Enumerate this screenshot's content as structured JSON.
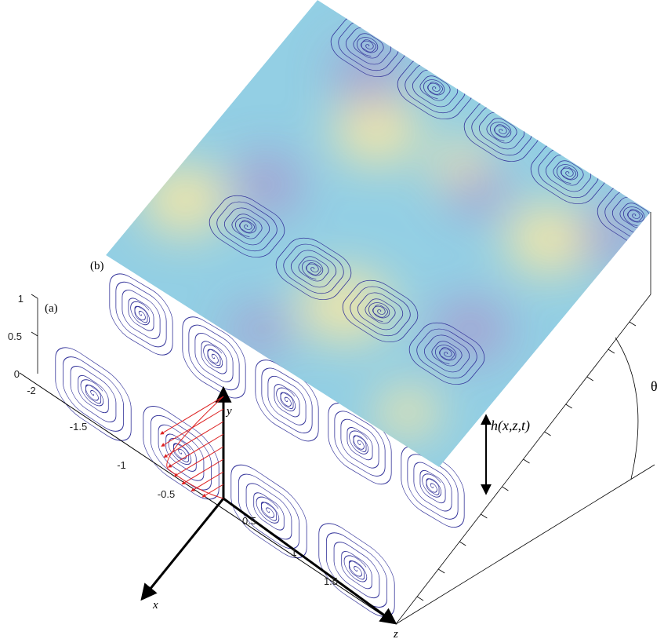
{
  "labels": {
    "a": "(a)",
    "b": "(b)"
  },
  "z_ticks": [
    "-2",
    "-1.5",
    "-1",
    "-0.5",
    "0.5",
    "1",
    "1.5"
  ],
  "y_ticks": [
    "0",
    "0.5",
    "1"
  ],
  "axes": {
    "x": "x",
    "y": "y",
    "z": "z"
  },
  "height_label": "h(x,z,t)",
  "angle_label": "θ"
}
